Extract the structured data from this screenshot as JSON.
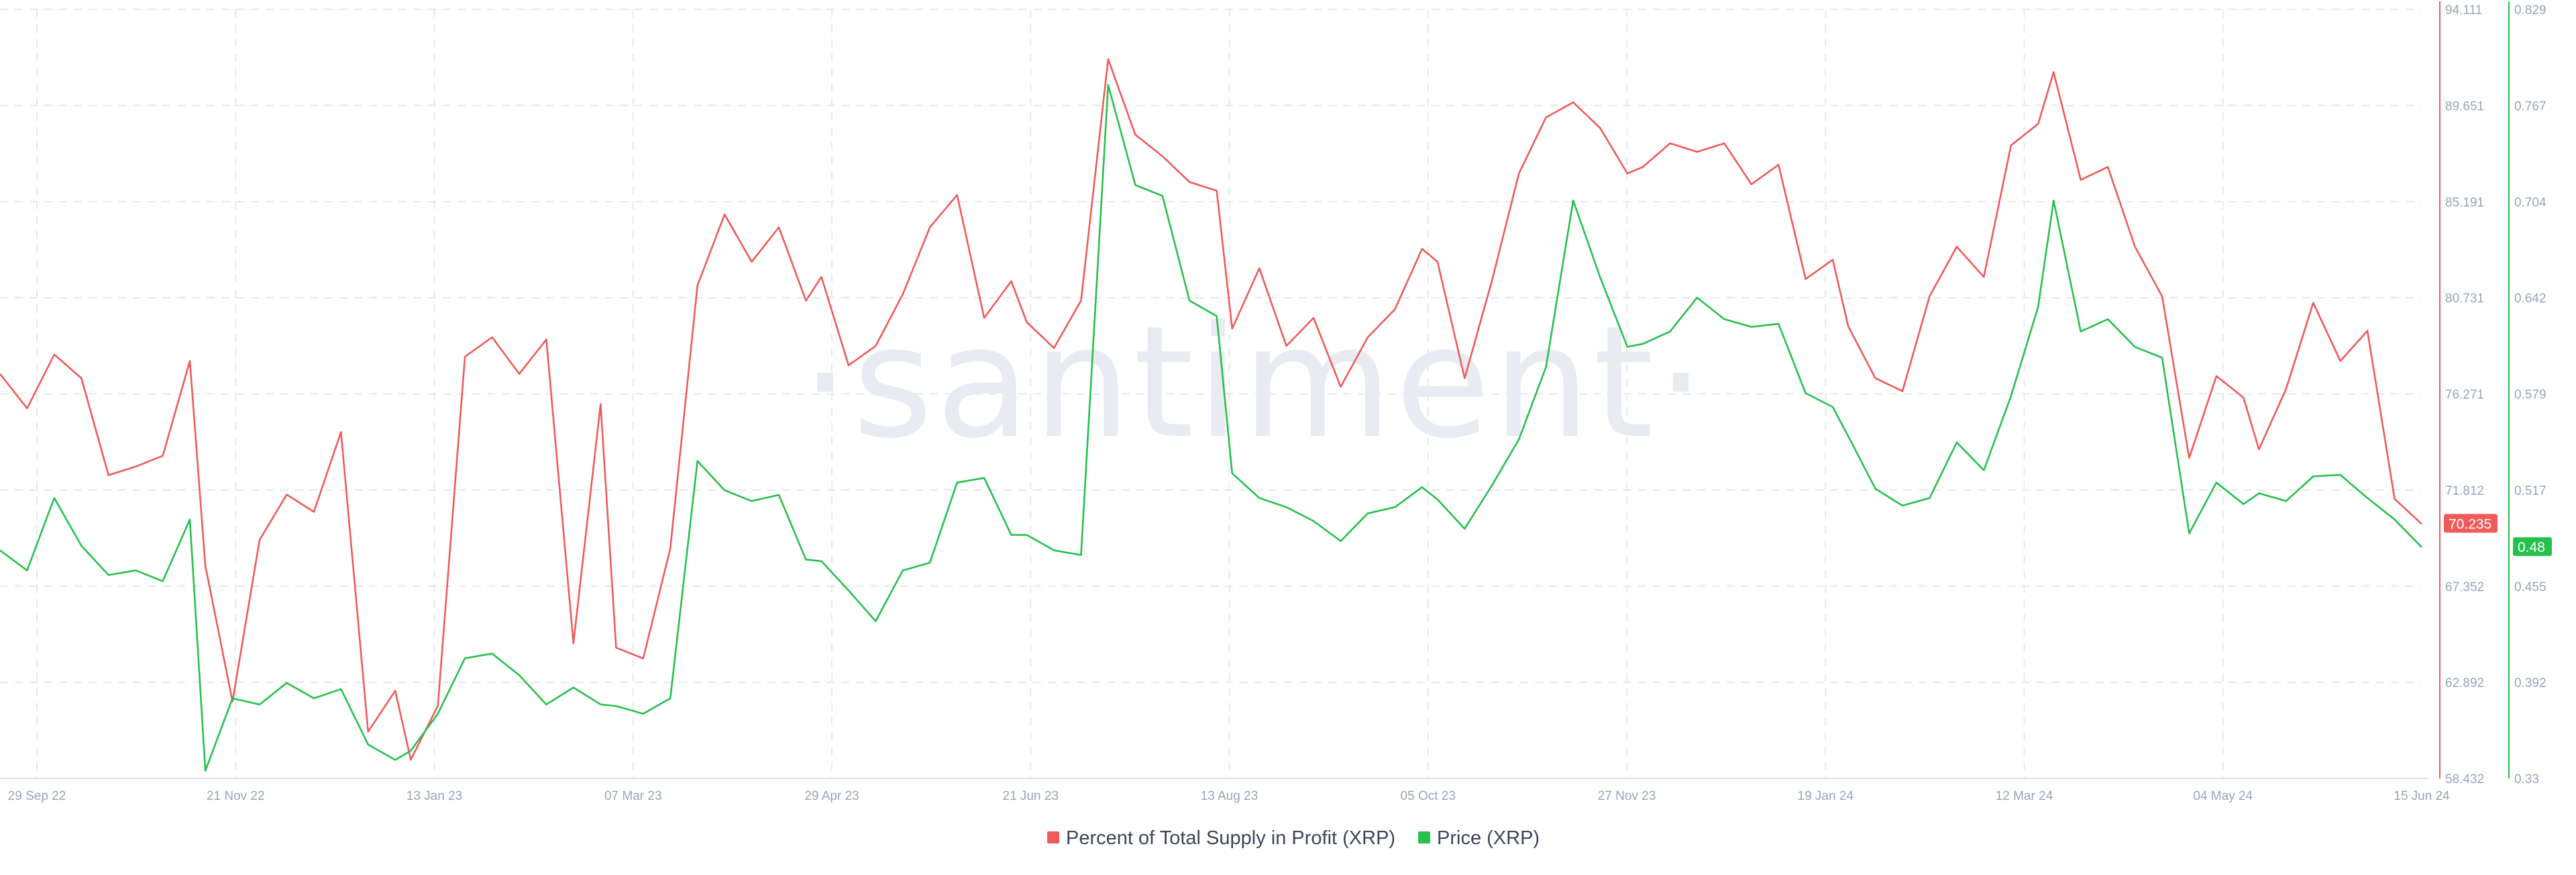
{
  "chart_data": {
    "type": "line",
    "watermark": "·santiment·",
    "x_tick_labels": [
      "29 Sep 22",
      "21 Nov 22",
      "13 Jan 23",
      "07 Mar 23",
      "29 Apr 23",
      "21 Jun 23",
      "13 Aug 23",
      "05 Oct 23",
      "27 Nov 23",
      "19 Jan 24",
      "12 Mar 24",
      "04 May 24",
      "15 Jun 24"
    ],
    "x_range": [
      "2022-09-29",
      "2024-06-15"
    ],
    "grid": true,
    "legend_position": "bottom-center",
    "axes": {
      "left_y": {
        "series": "Percent of Total Supply in Profit (XRP)",
        "ticks": [
          "94.111",
          "89.651",
          "85.191",
          "80.731",
          "76.271",
          "71.812",
          "67.352",
          "62.892",
          "58.432"
        ],
        "range": [
          58.432,
          94.111
        ],
        "color": "#f05a5a"
      },
      "right_y": {
        "series": "Price (XRP)",
        "ticks": [
          "0.829",
          "0.767",
          "0.704",
          "0.642",
          "0.579",
          "0.517",
          "0.455",
          "0.392",
          "0.33"
        ],
        "range": [
          0.33,
          0.829
        ],
        "color": "#26c04d"
      }
    },
    "series": [
      {
        "name": "Percent of Total Supply in Profit (XRP)",
        "color": "#f05a5a",
        "last_value": "70.235",
        "points": [
          [
            "2022-09-29",
            77.2
          ],
          [
            "2022-10-06",
            75.6
          ],
          [
            "2022-10-13",
            78.1
          ],
          [
            "2022-10-20",
            77.0
          ],
          [
            "2022-10-27",
            72.5
          ],
          [
            "2022-11-03",
            72.9
          ],
          [
            "2022-11-10",
            73.4
          ],
          [
            "2022-11-17",
            77.8
          ],
          [
            "2022-11-21",
            68.3
          ],
          [
            "2022-11-28",
            62.0
          ],
          [
            "2022-12-05",
            69.5
          ],
          [
            "2022-12-12",
            71.6
          ],
          [
            "2022-12-19",
            70.8
          ],
          [
            "2022-12-26",
            74.5
          ],
          [
            "2023-01-02",
            60.6
          ],
          [
            "2023-01-09",
            62.5
          ],
          [
            "2023-01-13",
            59.3
          ],
          [
            "2023-01-20",
            61.8
          ],
          [
            "2023-01-27",
            78.0
          ],
          [
            "2023-02-03",
            78.9
          ],
          [
            "2023-02-10",
            77.2
          ],
          [
            "2023-02-17",
            78.8
          ],
          [
            "2023-02-24",
            64.7
          ],
          [
            "2023-03-03",
            75.8
          ],
          [
            "2023-03-07",
            64.5
          ],
          [
            "2023-03-14",
            64.0
          ],
          [
            "2023-03-21",
            69.1
          ],
          [
            "2023-03-28",
            81.3
          ],
          [
            "2023-04-04",
            84.6
          ],
          [
            "2023-04-11",
            82.4
          ],
          [
            "2023-04-18",
            84.0
          ],
          [
            "2023-04-25",
            80.6
          ],
          [
            "2023-04-29",
            81.7
          ],
          [
            "2023-05-06",
            77.6
          ],
          [
            "2023-05-13",
            78.5
          ],
          [
            "2023-05-20",
            80.9
          ],
          [
            "2023-05-27",
            84.0
          ],
          [
            "2023-06-03",
            85.5
          ],
          [
            "2023-06-10",
            79.8
          ],
          [
            "2023-06-17",
            81.5
          ],
          [
            "2023-06-21",
            79.6
          ],
          [
            "2023-06-28",
            78.4
          ],
          [
            "2023-07-05",
            80.6
          ],
          [
            "2023-07-12",
            91.8
          ],
          [
            "2023-07-19",
            88.3
          ],
          [
            "2023-07-26",
            87.3
          ],
          [
            "2023-08-02",
            86.1
          ],
          [
            "2023-08-09",
            85.7
          ],
          [
            "2023-08-13",
            79.3
          ],
          [
            "2023-08-20",
            82.1
          ],
          [
            "2023-08-27",
            78.5
          ],
          [
            "2023-09-03",
            79.8
          ],
          [
            "2023-09-10",
            76.6
          ],
          [
            "2023-09-17",
            78.9
          ],
          [
            "2023-09-24",
            80.2
          ],
          [
            "2023-10-01",
            83.0
          ],
          [
            "2023-10-05",
            82.4
          ],
          [
            "2023-10-12",
            77.0
          ],
          [
            "2023-10-19",
            81.5
          ],
          [
            "2023-10-26",
            86.5
          ],
          [
            "2023-11-02",
            89.1
          ],
          [
            "2023-11-09",
            89.8
          ],
          [
            "2023-11-16",
            88.6
          ],
          [
            "2023-11-23",
            86.5
          ],
          [
            "2023-11-27",
            86.8
          ],
          [
            "2023-12-04",
            87.9
          ],
          [
            "2023-12-11",
            87.5
          ],
          [
            "2023-12-18",
            87.9
          ],
          [
            "2023-12-25",
            86.0
          ],
          [
            "2024-01-01",
            86.9
          ],
          [
            "2024-01-08",
            81.6
          ],
          [
            "2024-01-15",
            82.5
          ],
          [
            "2024-01-19",
            79.4
          ],
          [
            "2024-01-26",
            77.0
          ],
          [
            "2024-02-02",
            76.4
          ],
          [
            "2024-02-09",
            80.8
          ],
          [
            "2024-02-16",
            83.1
          ],
          [
            "2024-02-23",
            81.7
          ],
          [
            "2024-03-01",
            87.8
          ],
          [
            "2024-03-08",
            88.8
          ],
          [
            "2024-03-12",
            91.2
          ],
          [
            "2024-03-19",
            86.2
          ],
          [
            "2024-03-26",
            86.8
          ],
          [
            "2024-04-02",
            83.1
          ],
          [
            "2024-04-09",
            80.8
          ],
          [
            "2024-04-16",
            73.3
          ],
          [
            "2024-04-23",
            77.1
          ],
          [
            "2024-04-30",
            76.1
          ],
          [
            "2024-05-04",
            73.7
          ],
          [
            "2024-05-11",
            76.5
          ],
          [
            "2024-05-18",
            80.5
          ],
          [
            "2024-05-25",
            77.8
          ],
          [
            "2024-06-01",
            79.2
          ],
          [
            "2024-06-08",
            71.4
          ],
          [
            "2024-06-15",
            70.235
          ]
        ]
      },
      {
        "name": "Price (XRP)",
        "color": "#26c04d",
        "last_value": "0.48",
        "points": [
          [
            "2022-09-29",
            0.478
          ],
          [
            "2022-10-06",
            0.465
          ],
          [
            "2022-10-13",
            0.512
          ],
          [
            "2022-10-20",
            0.481
          ],
          [
            "2022-10-27",
            0.462
          ],
          [
            "2022-11-03",
            0.465
          ],
          [
            "2022-11-10",
            0.458
          ],
          [
            "2022-11-17",
            0.498
          ],
          [
            "2022-11-21",
            0.335
          ],
          [
            "2022-11-28",
            0.382
          ],
          [
            "2022-12-05",
            0.378
          ],
          [
            "2022-12-12",
            0.392
          ],
          [
            "2022-12-19",
            0.382
          ],
          [
            "2022-12-26",
            0.388
          ],
          [
            "2023-01-02",
            0.352
          ],
          [
            "2023-01-09",
            0.342
          ],
          [
            "2023-01-13",
            0.348
          ],
          [
            "2023-01-20",
            0.372
          ],
          [
            "2023-01-27",
            0.408
          ],
          [
            "2023-02-03",
            0.411
          ],
          [
            "2023-02-10",
            0.397
          ],
          [
            "2023-02-17",
            0.378
          ],
          [
            "2023-02-24",
            0.389
          ],
          [
            "2023-03-03",
            0.378
          ],
          [
            "2023-03-07",
            0.377
          ],
          [
            "2023-03-14",
            0.372
          ],
          [
            "2023-03-21",
            0.382
          ],
          [
            "2023-03-28",
            0.536
          ],
          [
            "2023-04-04",
            0.517
          ],
          [
            "2023-04-11",
            0.51
          ],
          [
            "2023-04-18",
            0.514
          ],
          [
            "2023-04-25",
            0.472
          ],
          [
            "2023-04-29",
            0.471
          ],
          [
            "2023-05-06",
            0.452
          ],
          [
            "2023-05-13",
            0.432
          ],
          [
            "2023-05-20",
            0.465
          ],
          [
            "2023-05-27",
            0.47
          ],
          [
            "2023-06-03",
            0.522
          ],
          [
            "2023-06-10",
            0.525
          ],
          [
            "2023-06-17",
            0.488
          ],
          [
            "2023-06-21",
            0.488
          ],
          [
            "2023-06-28",
            0.478
          ],
          [
            "2023-07-05",
            0.475
          ],
          [
            "2023-07-12",
            0.78
          ],
          [
            "2023-07-19",
            0.715
          ],
          [
            "2023-07-26",
            0.708
          ],
          [
            "2023-08-02",
            0.64
          ],
          [
            "2023-08-09",
            0.63
          ],
          [
            "2023-08-13",
            0.528
          ],
          [
            "2023-08-20",
            0.512
          ],
          [
            "2023-08-27",
            0.506
          ],
          [
            "2023-09-03",
            0.497
          ],
          [
            "2023-09-10",
            0.484
          ],
          [
            "2023-09-17",
            0.502
          ],
          [
            "2023-09-24",
            0.506
          ],
          [
            "2023-10-01",
            0.519
          ],
          [
            "2023-10-05",
            0.511
          ],
          [
            "2023-10-12",
            0.492
          ],
          [
            "2023-10-19",
            0.52
          ],
          [
            "2023-10-26",
            0.55
          ],
          [
            "2023-11-02",
            0.597
          ],
          [
            "2023-11-09",
            0.705
          ],
          [
            "2023-11-16",
            0.655
          ],
          [
            "2023-11-23",
            0.61
          ],
          [
            "2023-11-27",
            0.612
          ],
          [
            "2023-12-04",
            0.62
          ],
          [
            "2023-12-11",
            0.642
          ],
          [
            "2023-12-18",
            0.628
          ],
          [
            "2023-12-25",
            0.623
          ],
          [
            "2024-01-01",
            0.625
          ],
          [
            "2024-01-08",
            0.58
          ],
          [
            "2024-01-15",
            0.571
          ],
          [
            "2024-01-19",
            0.552
          ],
          [
            "2024-01-26",
            0.518
          ],
          [
            "2024-02-02",
            0.507
          ],
          [
            "2024-02-09",
            0.512
          ],
          [
            "2024-02-16",
            0.548
          ],
          [
            "2024-02-23",
            0.53
          ],
          [
            "2024-03-01",
            0.578
          ],
          [
            "2024-03-08",
            0.636
          ],
          [
            "2024-03-12",
            0.705
          ],
          [
            "2024-03-19",
            0.62
          ],
          [
            "2024-03-26",
            0.628
          ],
          [
            "2024-04-02",
            0.61
          ],
          [
            "2024-04-09",
            0.603
          ],
          [
            "2024-04-16",
            0.489
          ],
          [
            "2024-04-23",
            0.522
          ],
          [
            "2024-04-30",
            0.508
          ],
          [
            "2024-05-04",
            0.515
          ],
          [
            "2024-05-11",
            0.51
          ],
          [
            "2024-05-18",
            0.526
          ],
          [
            "2024-05-25",
            0.527
          ],
          [
            "2024-06-01",
            0.512
          ],
          [
            "2024-06-08",
            0.498
          ],
          [
            "2024-06-15",
            0.48
          ]
        ]
      }
    ]
  }
}
